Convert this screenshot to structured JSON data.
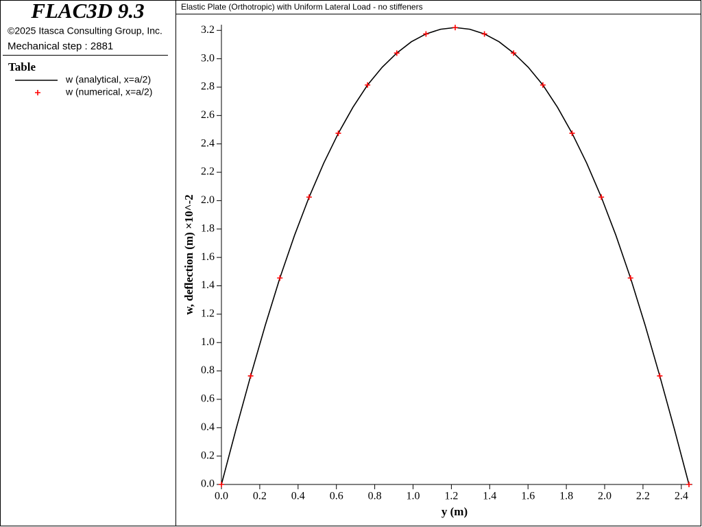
{
  "panel": {
    "product": "FLAC3D 9.3",
    "copyright": "©2025 Itasca Consulting Group, Inc.",
    "step": "Mechanical step : 2881",
    "legend_title": "Table"
  },
  "chart_data": {
    "type": "line",
    "title": "Elastic Plate (Orthotropic) with Uniform Lateral Load - no stiffeners",
    "x_label": "y (m)",
    "y_label": "w, deflection (m) ×10^-2",
    "xlim": [
      0,
      2.44
    ],
    "ylim": [
      0,
      3.24
    ],
    "xticks": [
      {
        "value": 0,
        "label": "0.0"
      },
      {
        "value": 0.2,
        "label": "0.2"
      },
      {
        "value": 0.4,
        "label": "0.4"
      },
      {
        "value": 0.6,
        "label": "0.6"
      },
      {
        "value": 0.8,
        "label": "0.8"
      },
      {
        "value": 1,
        "label": "1.0"
      },
      {
        "value": 1.2,
        "label": "1.2"
      },
      {
        "value": 1.4,
        "label": "1.4"
      },
      {
        "value": 1.6,
        "label": "1.6"
      },
      {
        "value": 1.8,
        "label": "1.8"
      },
      {
        "value": 2,
        "label": "2.0"
      },
      {
        "value": 2.2,
        "label": "2.2"
      },
      {
        "value": 2.4,
        "label": "2.4"
      }
    ],
    "yticks": [
      {
        "value": 0,
        "label": "0.0"
      },
      {
        "value": 0.2,
        "label": "0.2"
      },
      {
        "value": 0.4,
        "label": "0.4"
      },
      {
        "value": 0.6,
        "label": "0.6"
      },
      {
        "value": 0.8,
        "label": "0.8"
      },
      {
        "value": 1,
        "label": "1.0"
      },
      {
        "value": 1.2,
        "label": "1.2"
      },
      {
        "value": 1.4,
        "label": "1.4"
      },
      {
        "value": 1.6,
        "label": "1.6"
      },
      {
        "value": 1.8,
        "label": "1.8"
      },
      {
        "value": 2,
        "label": "2.0"
      },
      {
        "value": 2.2,
        "label": "2.2"
      },
      {
        "value": 2.4,
        "label": "2.4"
      },
      {
        "value": 2.6,
        "label": "2.6"
      },
      {
        "value": 2.8,
        "label": "2.8"
      },
      {
        "value": 3,
        "label": "3.0"
      },
      {
        "value": 3.2,
        "label": "3.2"
      }
    ],
    "series": [
      {
        "name": "w (analytical, x=a/2)",
        "color": "#000000",
        "style": "line",
        "x": [
          0,
          0.0763,
          0.1525,
          0.2288,
          0.305,
          0.3813,
          0.4575,
          0.5338,
          0.61,
          0.6863,
          0.7625,
          0.8388,
          0.915,
          0.9913,
          1.0675,
          1.1438,
          1.22,
          1.2963,
          1.3725,
          1.4488,
          1.525,
          1.6013,
          1.6775,
          1.7538,
          1.83,
          1.9063,
          1.9825,
          2.0588,
          2.135,
          2.2113,
          2.2875,
          2.3638,
          2.44
        ],
        "values": [
          0,
          0.39,
          0.765,
          1.122,
          1.455,
          1.755,
          2.025,
          2.264,
          2.475,
          2.658,
          2.815,
          2.94,
          3.04,
          3.12,
          3.175,
          3.208,
          3.22,
          3.208,
          3.175,
          3.12,
          3.04,
          2.94,
          2.815,
          2.658,
          2.475,
          2.264,
          2.025,
          1.755,
          1.455,
          1.122,
          0.765,
          0.39,
          0
        ]
      },
      {
        "name": "w (numerical, x=a/2)",
        "color": "#ff0000",
        "style": "plus",
        "x": [
          0,
          0.1525,
          0.305,
          0.4575,
          0.61,
          0.7625,
          0.915,
          1.0675,
          1.22,
          1.3725,
          1.525,
          1.6775,
          1.83,
          1.9825,
          2.135,
          2.2875,
          2.44
        ],
        "values": [
          0,
          0.765,
          1.455,
          2.025,
          2.475,
          2.815,
          3.04,
          3.175,
          3.22,
          3.175,
          3.04,
          2.815,
          2.475,
          2.025,
          1.455,
          0.765,
          0
        ]
      }
    ]
  }
}
